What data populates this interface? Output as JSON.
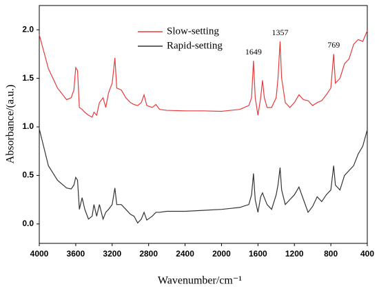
{
  "chart_data": {
    "type": "line",
    "x_label": "Wavenumber/cm⁻¹",
    "y_label": "Absorbance/(a.u.)",
    "x": [
      4000,
      3900,
      3800,
      3700,
      3650,
      3620,
      3600,
      3580,
      3560,
      3530,
      3500,
      3460,
      3420,
      3400,
      3370,
      3340,
      3300,
      3270,
      3240,
      3200,
      3170,
      3150,
      3100,
      3050,
      3000,
      2960,
      2920,
      2880,
      2850,
      2820,
      2760,
      2720,
      2680,
      2600,
      2400,
      2200,
      2000,
      1900,
      1800,
      1700,
      1670,
      1649,
      1630,
      1600,
      1570,
      1550,
      1530,
      1500,
      1450,
      1400,
      1380,
      1357,
      1340,
      1300,
      1250,
      1200,
      1150,
      1100,
      1050,
      1000,
      950,
      900,
      850,
      800,
      769,
      750,
      700,
      650,
      600,
      550,
      500,
      450,
      400
    ],
    "series": [
      {
        "name": "Slow-setting",
        "color": "#e8393a",
        "values": [
          1.95,
          1.6,
          1.4,
          1.28,
          1.3,
          1.38,
          1.61,
          1.58,
          1.2,
          1.18,
          1.15,
          1.12,
          1.1,
          1.15,
          1.12,
          1.25,
          1.3,
          1.2,
          1.35,
          1.45,
          1.71,
          1.4,
          1.38,
          1.3,
          1.25,
          1.23,
          1.22,
          1.25,
          1.33,
          1.22,
          1.2,
          1.23,
          1.18,
          1.17,
          1.165,
          1.165,
          1.16,
          1.17,
          1.18,
          1.22,
          1.3,
          1.68,
          1.3,
          1.12,
          1.3,
          1.48,
          1.3,
          1.2,
          1.2,
          1.3,
          1.5,
          1.88,
          1.5,
          1.25,
          1.2,
          1.25,
          1.33,
          1.28,
          1.27,
          1.22,
          1.25,
          1.27,
          1.33,
          1.4,
          1.75,
          1.45,
          1.5,
          1.65,
          1.7,
          1.85,
          1.9,
          1.88,
          1.99
        ]
      },
      {
        "name": "Rapid-setting",
        "color": "#333333",
        "values": [
          0.98,
          0.6,
          0.45,
          0.37,
          0.36,
          0.4,
          0.48,
          0.45,
          0.15,
          0.27,
          0.15,
          0.05,
          0.08,
          0.2,
          0.08,
          0.2,
          0.05,
          0.12,
          0.15,
          0.2,
          0.37,
          0.2,
          0.2,
          0.15,
          0.1,
          0.08,
          0.01,
          0.05,
          0.12,
          0.04,
          0.08,
          0.12,
          0.12,
          0.13,
          0.13,
          0.14,
          0.15,
          0.16,
          0.17,
          0.2,
          0.3,
          0.52,
          0.25,
          0.12,
          0.28,
          0.32,
          0.27,
          0.2,
          0.15,
          0.3,
          0.4,
          0.58,
          0.35,
          0.2,
          0.25,
          0.3,
          0.38,
          0.25,
          0.12,
          0.18,
          0.28,
          0.23,
          0.3,
          0.35,
          0.6,
          0.4,
          0.35,
          0.5,
          0.55,
          0.6,
          0.72,
          0.8,
          0.97
        ]
      }
    ],
    "annotations": [
      {
        "text": "1649",
        "x": 1649
      },
      {
        "text": "1357",
        "x": 1357
      },
      {
        "text": "769",
        "x": 769
      }
    ],
    "xlim": [
      4000,
      400
    ],
    "xticks": [
      4000,
      3600,
      3200,
      2800,
      2400,
      2000,
      1600,
      1200,
      800,
      400
    ],
    "ylim": [
      -0.2,
      2.25
    ],
    "yticks": [
      {
        "value": 0,
        "label": "0.0"
      },
      {
        "value": 0.5,
        "label": "0.5"
      },
      {
        "value": 1,
        "label": "1.0"
      },
      {
        "value": 1.5,
        "label": "1.5"
      },
      {
        "value": 2,
        "label": "2.0"
      }
    ],
    "legend": "upper center"
  }
}
